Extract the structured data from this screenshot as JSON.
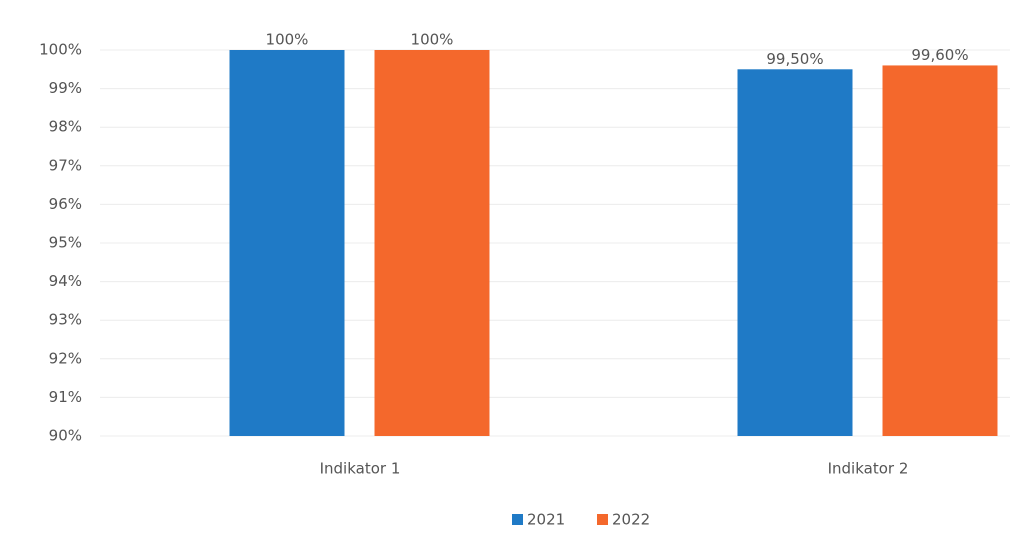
{
  "chart_data": {
    "type": "bar",
    "categories": [
      "Indikator 1",
      "Indikator 2"
    ],
    "series": [
      {
        "name": "2021",
        "color": "#1f7ac6",
        "values": [
          100,
          99.5
        ],
        "value_labels": [
          "100%",
          "99,50%"
        ]
      },
      {
        "name": "2022",
        "color": "#f4682c",
        "values": [
          100,
          99.6
        ],
        "value_labels": [
          "100%",
          "99,60%"
        ]
      }
    ],
    "ylim": [
      90,
      100
    ],
    "yticks": [
      {
        "value": 90,
        "label": "90%"
      },
      {
        "value": 91,
        "label": "91%"
      },
      {
        "value": 92,
        "label": "92%"
      },
      {
        "value": 93,
        "label": "93%"
      },
      {
        "value": 94,
        "label": "94%"
      },
      {
        "value": 95,
        "label": "95%"
      },
      {
        "value": 96,
        "label": "96%"
      },
      {
        "value": 97,
        "label": "97%"
      },
      {
        "value": 98,
        "label": "98%"
      },
      {
        "value": 99,
        "label": "99%"
      },
      {
        "value": 100,
        "label": "100%"
      }
    ],
    "grid": true,
    "legend": "bottom"
  }
}
